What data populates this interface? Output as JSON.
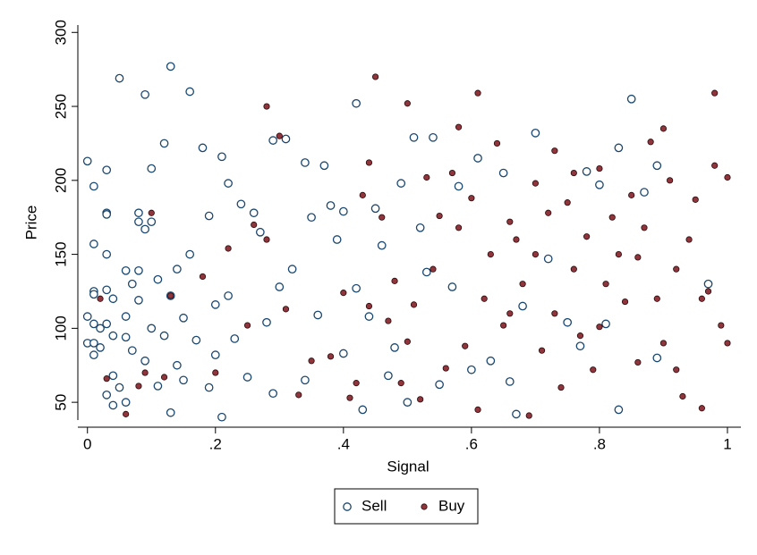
{
  "chart_data": {
    "type": "scatter",
    "x_label": "Signal",
    "y_label": "Price",
    "xlim": [
      -0.015,
      1.021
    ],
    "ylim": [
      38,
      305
    ],
    "xticks": [
      0,
      {
        "value": 0.2,
        "label": ".2"
      },
      {
        "value": 0.4,
        "label": ".4"
      },
      {
        "value": 0.6,
        "label": ".6"
      },
      {
        "value": 0.8,
        "label": ".8"
      },
      1
    ],
    "yticks": [
      50,
      100,
      150,
      200,
      250,
      300
    ],
    "series": [
      {
        "name": "Sell",
        "color": "#1a476f",
        "x": [
          0,
          0,
          0,
          0.01,
          0.01,
          0.01,
          0.01,
          0.01,
          0.01,
          0.01,
          0.02,
          0.02,
          0.03,
          0.03,
          0.03,
          0.03,
          0.03,
          0.03,
          0.03,
          0.04,
          0.04,
          0.04,
          0.04,
          0.05,
          0.05,
          0.06,
          0.06,
          0.06,
          0.06,
          0.07,
          0.07,
          0.08,
          0.08,
          0.08,
          0.08,
          0.09,
          0.09,
          0.09,
          0.1,
          0.1,
          0.1,
          0.11,
          0.11,
          0.12,
          0.12,
          0.13,
          0.13,
          0.13,
          0.14,
          0.14,
          0.15,
          0.15,
          0.16,
          0.16,
          0.17,
          0.18,
          0.19,
          0.19,
          0.2,
          0.2,
          0.21,
          0.21,
          0.22,
          0.22,
          0.23,
          0.24,
          0.25,
          0.26,
          0.27,
          0.28,
          0.29,
          0.29,
          0.3,
          0.31,
          0.32,
          0.34,
          0.34,
          0.35,
          0.36,
          0.37,
          0.38,
          0.39,
          0.4,
          0.4,
          0.42,
          0.42,
          0.43,
          0.44,
          0.45,
          0.46,
          0.47,
          0.48,
          0.49,
          0.5,
          0.51,
          0.52,
          0.53,
          0.54,
          0.55,
          0.57,
          0.58,
          0.6,
          0.61,
          0.63,
          0.65,
          0.66,
          0.67,
          0.68,
          0.7,
          0.72,
          0.75,
          0.77,
          0.78,
          0.8,
          0.81,
          0.83,
          0.83,
          0.85,
          0.87,
          0.89,
          0.89,
          0.97
        ],
        "values": [
          213,
          108,
          90,
          196,
          157,
          125,
          123,
          103,
          90,
          82,
          100,
          87,
          207,
          178,
          177,
          150,
          126,
          103,
          55,
          120,
          95,
          68,
          48,
          269,
          60,
          139,
          108,
          94,
          50,
          130,
          85,
          178,
          172,
          139,
          119,
          258,
          167,
          78,
          208,
          172,
          100,
          133,
          61,
          225,
          95,
          277,
          122,
          43,
          140,
          75,
          107,
          65,
          260,
          150,
          92,
          222,
          176,
          60,
          116,
          82,
          216,
          40,
          198,
          122,
          93,
          184,
          67,
          178,
          165,
          104,
          227,
          56,
          128,
          228,
          140,
          212,
          65,
          175,
          109,
          210,
          183,
          160,
          179,
          83,
          252,
          127,
          45,
          108,
          181,
          156,
          68,
          87,
          198,
          50,
          229,
          168,
          138,
          229,
          62,
          128,
          196,
          72,
          215,
          78,
          205,
          64,
          42,
          115,
          232,
          147,
          104,
          88,
          206,
          197,
          103,
          45,
          222,
          255,
          192,
          80,
          210,
          130
        ]
      },
      {
        "name": "Buy",
        "color": "#90353b",
        "x": [
          0.02,
          0.03,
          0.06,
          0.08,
          0.09,
          0.1,
          0.12,
          0.13,
          0.18,
          0.2,
          0.22,
          0.25,
          0.26,
          0.28,
          0.28,
          0.3,
          0.31,
          0.33,
          0.35,
          0.38,
          0.4,
          0.41,
          0.42,
          0.43,
          0.44,
          0.44,
          0.45,
          0.46,
          0.47,
          0.48,
          0.49,
          0.5,
          0.5,
          0.51,
          0.52,
          0.53,
          0.54,
          0.55,
          0.56,
          0.57,
          0.58,
          0.59,
          0.6,
          0.61,
          0.61,
          0.62,
          0.63,
          0.64,
          0.65,
          0.66,
          0.67,
          0.68,
          0.69,
          0.7,
          0.71,
          0.72,
          0.73,
          0.73,
          0.74,
          0.75,
          0.76,
          0.77,
          0.78,
          0.79,
          0.8,
          0.8,
          0.81,
          0.82,
          0.83,
          0.84,
          0.85,
          0.86,
          0.87,
          0.88,
          0.89,
          0.9,
          0.9,
          0.91,
          0.92,
          0.93,
          0.94,
          0.95,
          0.96,
          0.97,
          0.98,
          0.98,
          0.99,
          1,
          1,
          0.58,
          0.66,
          0.7,
          0.76,
          0.86,
          0.92,
          0.96
        ],
        "values": [
          120,
          66,
          42,
          61,
          70,
          178,
          67,
          122,
          135,
          70,
          154,
          102,
          170,
          250,
          160,
          230,
          113,
          55,
          78,
          81,
          124,
          53,
          63,
          190,
          212,
          115,
          270,
          175,
          105,
          132,
          63,
          252,
          91,
          116,
          52,
          202,
          140,
          176,
          73,
          205,
          168,
          88,
          188,
          259,
          45,
          120,
          150,
          225,
          102,
          172,
          160,
          130,
          41,
          198,
          85,
          178,
          220,
          110,
          60,
          185,
          140,
          95,
          162,
          72,
          208,
          101,
          130,
          175,
          150,
          118,
          190,
          77,
          168,
          226,
          120,
          235,
          90,
          200,
          140,
          54,
          160,
          187,
          46,
          125,
          259,
          210,
          102,
          202,
          90,
          236,
          110,
          150,
          205,
          148,
          72,
          120
        ]
      }
    ]
  }
}
